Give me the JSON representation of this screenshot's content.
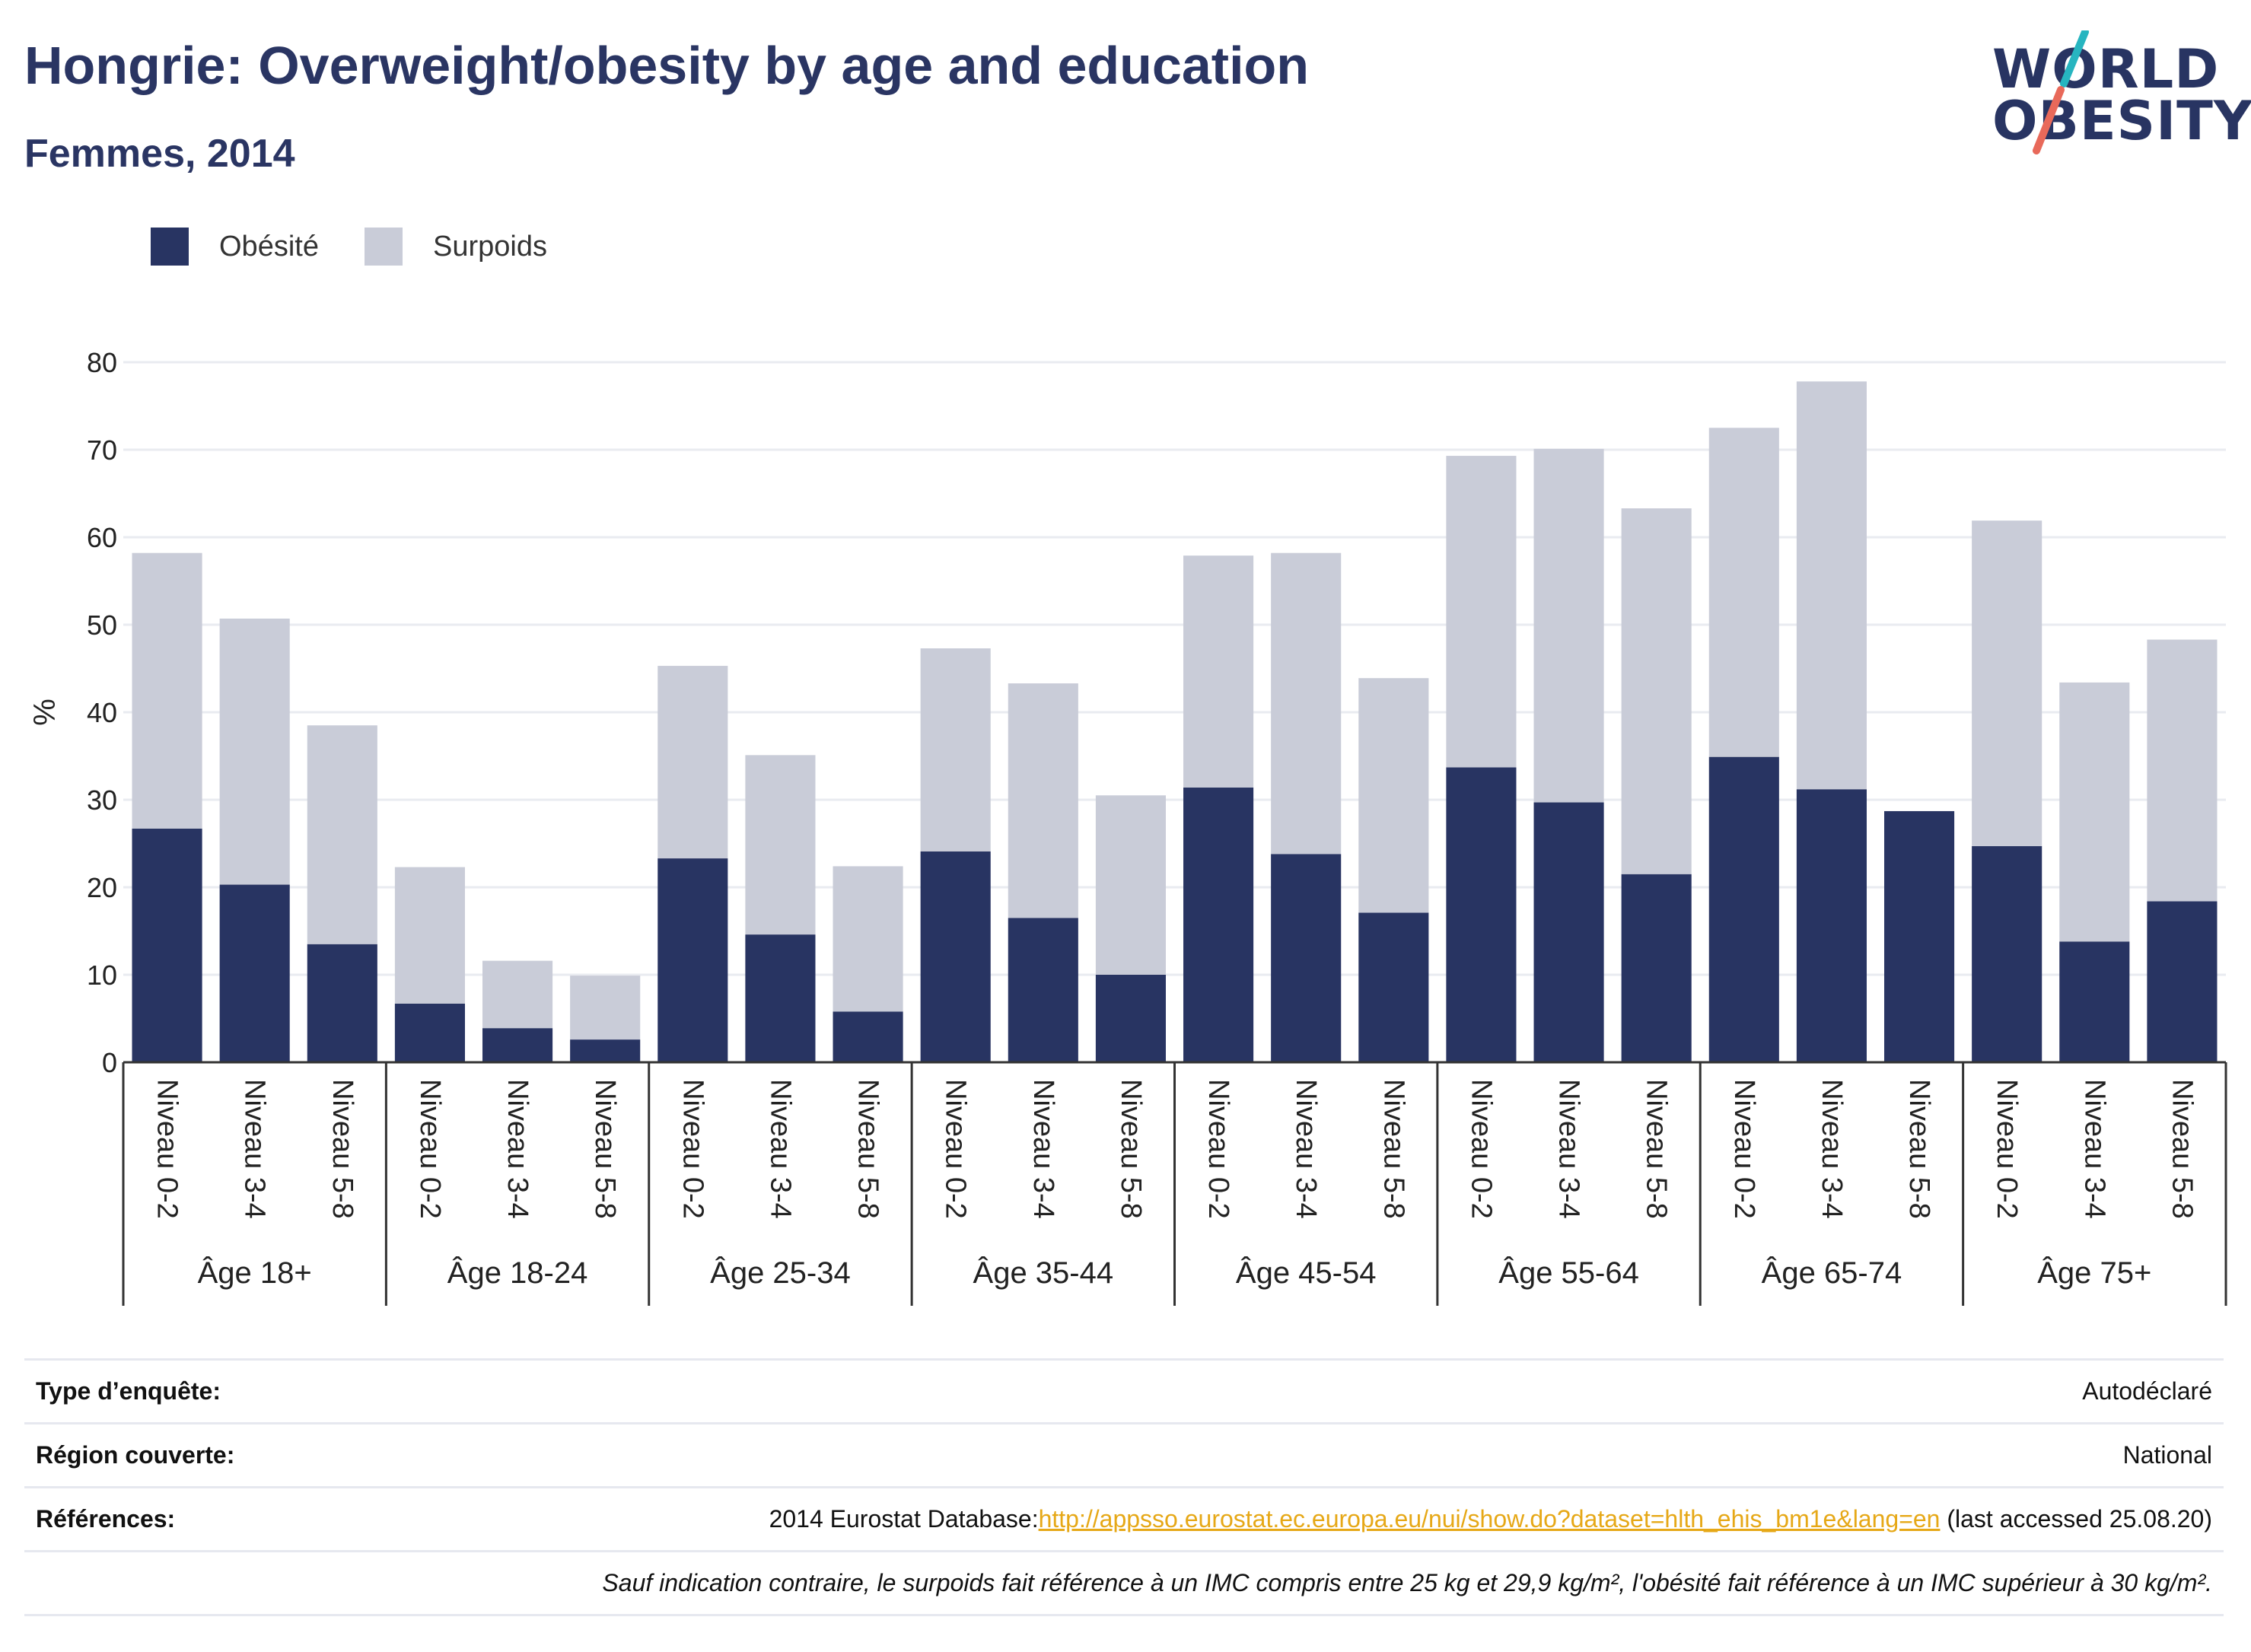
{
  "title": "Hongrie: Overweight/obesity by age and education",
  "subtitle": "Femmes, 2014",
  "logo": {
    "line1": "WORLD",
    "line2": "OBESITY"
  },
  "colors": {
    "obesity": "#283462",
    "overweight": "#c9ccd8",
    "grid": "#e9ebf0",
    "axis": "#333333",
    "accent_teal": "#27b5c0",
    "accent_red": "#e8695a"
  },
  "legend": [
    {
      "label": "Obésité",
      "color": "#283462"
    },
    {
      "label": "Surpoids",
      "color": "#c9ccd8"
    }
  ],
  "chart_data": {
    "type": "bar",
    "stacked": true,
    "ylabel": "%",
    "ylim": [
      0,
      80
    ],
    "yticks": [
      0,
      10,
      20,
      30,
      40,
      50,
      60,
      70,
      80
    ],
    "grid": true,
    "legend_position": "top-left",
    "groups": [
      {
        "label": "Âge 18+",
        "categories": [
          "Niveau 0-2",
          "Niveau 3-4",
          "Niveau 5-8"
        ],
        "obesity": [
          26.7,
          20.3,
          13.5
        ],
        "overweight": [
          31.5,
          30.4,
          25.0
        ]
      },
      {
        "label": "Âge 18-24",
        "categories": [
          "Niveau 0-2",
          "Niveau 3-4",
          "Niveau 5-8"
        ],
        "obesity": [
          6.7,
          3.9,
          2.6
        ],
        "overweight": [
          15.6,
          7.7,
          7.3
        ]
      },
      {
        "label": "Âge 25-34",
        "categories": [
          "Niveau 0-2",
          "Niveau 3-4",
          "Niveau 5-8"
        ],
        "obesity": [
          23.3,
          14.6,
          5.8
        ],
        "overweight": [
          22.0,
          20.5,
          16.6
        ]
      },
      {
        "label": "Âge 35-44",
        "categories": [
          "Niveau 0-2",
          "Niveau 3-4",
          "Niveau 5-8"
        ],
        "obesity": [
          24.1,
          16.5,
          10.0
        ],
        "overweight": [
          23.2,
          26.8,
          20.5
        ]
      },
      {
        "label": "Âge 45-54",
        "categories": [
          "Niveau 0-2",
          "Niveau 3-4",
          "Niveau 5-8"
        ],
        "obesity": [
          31.4,
          23.8,
          17.1
        ],
        "overweight": [
          26.5,
          34.4,
          26.8
        ]
      },
      {
        "label": "Âge 55-64",
        "categories": [
          "Niveau 0-2",
          "Niveau 3-4",
          "Niveau 5-8"
        ],
        "obesity": [
          33.7,
          29.7,
          21.5
        ],
        "overweight": [
          35.6,
          40.4,
          41.8
        ]
      },
      {
        "label": "Âge 65-74",
        "categories": [
          "Niveau 0-2",
          "Niveau 3-4",
          "Niveau 5-8"
        ],
        "obesity": [
          34.9,
          31.2,
          28.7
        ],
        "overweight": [
          37.6,
          46.6,
          0
        ]
      },
      {
        "label": "Âge 75+",
        "categories": [
          "Niveau 0-2",
          "Niveau 3-4",
          "Niveau 5-8"
        ],
        "obesity": [
          24.7,
          13.8,
          18.4
        ],
        "overweight": [
          37.2,
          29.6,
          29.9
        ]
      }
    ]
  },
  "footer": {
    "survey_type": {
      "label": "Type d’enquête:",
      "value": "Autodéclaré"
    },
    "region": {
      "label": "Région couverte:",
      "value": "National"
    },
    "references": {
      "label": "Références:",
      "prefix": "2014 Eurostat Database:",
      "link": "http://appsso.eurostat.ec.europa.eu/nui/show.do?dataset=hlth_ehis_bm1e&lang=en",
      "suffix": " (last accessed 25.08.20)"
    },
    "note": "Sauf indication contraire, le surpoids fait référence à un IMC compris entre 25 kg et 29,9 kg/m², l'obésité fait référence à un IMC supérieur à 30 kg/m²."
  }
}
